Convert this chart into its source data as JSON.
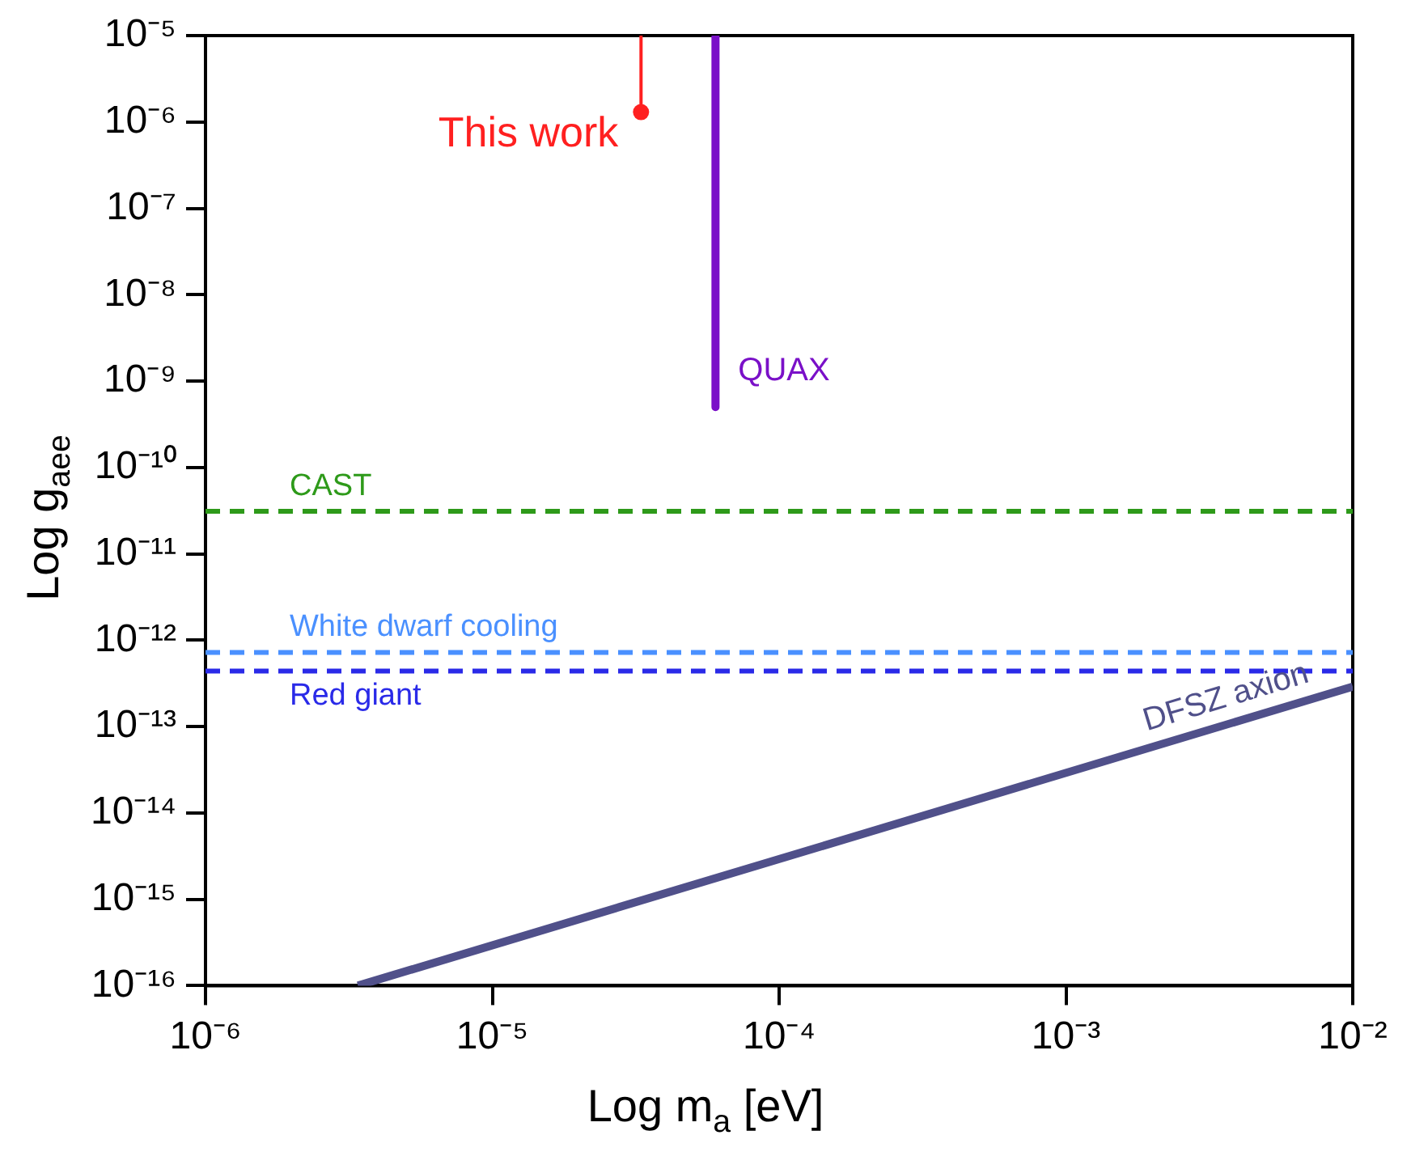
{
  "chart_data": {
    "type": "line",
    "xlabel": "Log m$_{a}$ [eV]",
    "ylabel": "Log g$_{aee}$",
    "log": "xy",
    "grid": false,
    "legend": false,
    "xlim": [
      1e-06,
      0.01
    ],
    "ylim": [
      1e-16,
      1e-05
    ],
    "xticks": [
      {
        "value": 1e-06,
        "label": "10⁻⁶"
      },
      {
        "value": 1e-05,
        "label": "10⁻⁵"
      },
      {
        "value": 0.0001,
        "label": "10⁻⁴"
      },
      {
        "value": 0.001,
        "label": "10⁻³"
      },
      {
        "value": 0.01,
        "label": "10⁻²"
      }
    ],
    "yticks": [
      {
        "value": 1e-16,
        "label": "10⁻¹⁶"
      },
      {
        "value": 1e-15,
        "label": "10⁻¹⁵"
      },
      {
        "value": 1e-14,
        "label": "10⁻¹⁴"
      },
      {
        "value": 1e-13,
        "label": "10⁻¹³"
      },
      {
        "value": 1e-12,
        "label": "10⁻¹²"
      },
      {
        "value": 1e-11,
        "label": "10⁻¹¹"
      },
      {
        "value": 1e-10,
        "label": "10⁻¹⁰"
      },
      {
        "value": 1e-09,
        "label": "10⁻⁹"
      },
      {
        "value": 1e-08,
        "label": "10⁻⁸"
      },
      {
        "value": 1e-07,
        "label": "10⁻⁷"
      },
      {
        "value": 1e-06,
        "label": "10⁻⁶"
      },
      {
        "value": 1e-05,
        "label": "10⁻⁵"
      }
    ],
    "series": [
      {
        "name": "This work",
        "color": "#ff2020",
        "x": [
          3.3e-05,
          3.3e-05
        ],
        "values": [
          1e-05,
          1.3e-06
        ],
        "marker": "none",
        "line_style": "solid"
      },
      {
        "type": "scatter",
        "color": "#ff2020",
        "x": [
          3.3e-05
        ],
        "values": [
          1.3e-06
        ],
        "marker": "circle"
      },
      {
        "name": "QUAX",
        "color": "#7a10c8",
        "x": [
          6e-05,
          6e-05
        ],
        "values": [
          1e-05,
          5e-10
        ],
        "marker": "none",
        "line_style": "solid"
      },
      {
        "name": "DFSZ axion",
        "color": "#50508a",
        "x": [
          3.4e-06,
          0.01
        ],
        "values": [
          1e-16,
          2.9e-13
        ],
        "marker": "none",
        "line_style": "solid"
      }
    ],
    "ref_lines": [
      {
        "axis": "y",
        "value": 3.1e-11,
        "label": "CAST",
        "color": "#2e9a1a",
        "line_style": "dashed"
      },
      {
        "axis": "y",
        "value": 7.2e-13,
        "label": "White dwarf cooling",
        "color": "#4a90ff",
        "line_style": "dashed"
      },
      {
        "axis": "y",
        "value": 4.4e-13,
        "label": "Red giant",
        "color": "#2a2ae8",
        "line_style": "dashed"
      }
    ]
  }
}
